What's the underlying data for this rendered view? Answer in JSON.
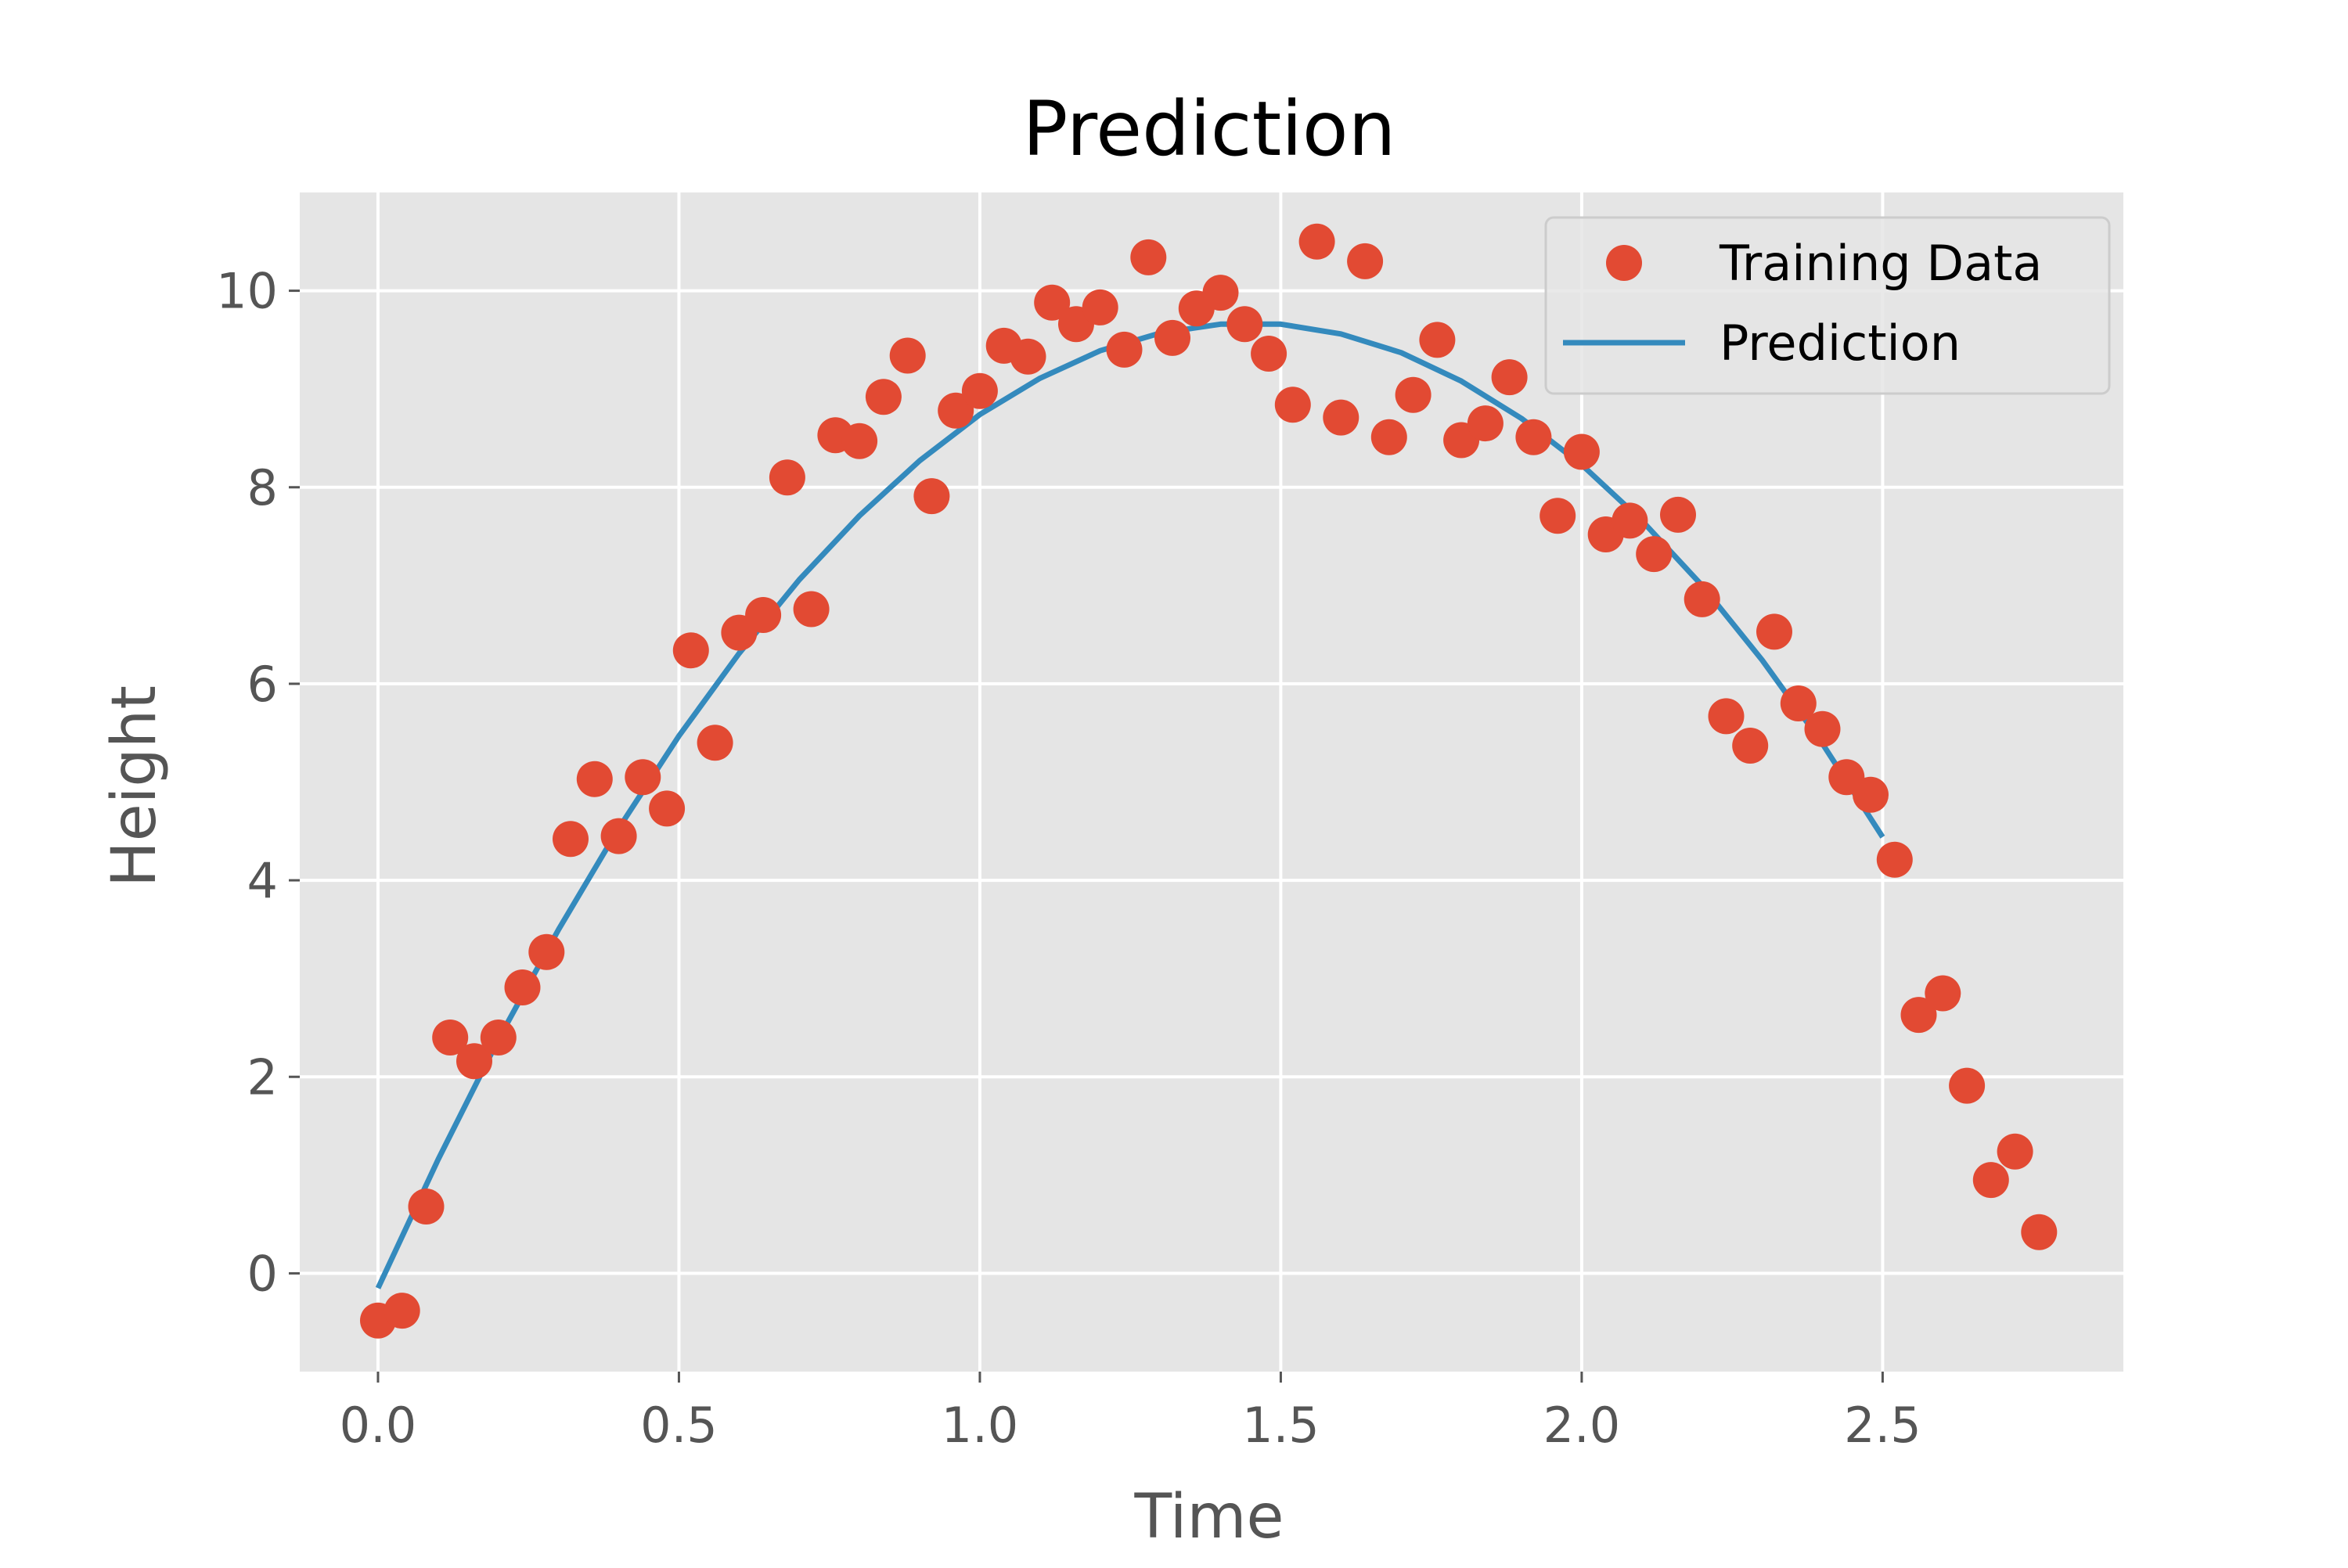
{
  "chart_data": {
    "type": "scatter",
    "title": "Prediction",
    "xlabel": "Time",
    "ylabel": "Height",
    "xlim": [
      -0.13,
      2.9
    ],
    "ylim": [
      -1.0,
      11.0
    ],
    "xticks": [
      0.0,
      0.5,
      1.0,
      1.5,
      2.0,
      2.5
    ],
    "xtick_labels": [
      "0.0",
      "0.5",
      "1.0",
      "1.5",
      "2.0",
      "2.5"
    ],
    "yticks": [
      0,
      2,
      4,
      6,
      8,
      10
    ],
    "ytick_labels": [
      "0",
      "2",
      "4",
      "6",
      "8",
      "10"
    ],
    "grid": true,
    "legend_position": "top-right",
    "background_color": "#e5e5e5",
    "series": [
      {
        "name": "Training Data",
        "kind": "scatter",
        "color": "#e24a33",
        "points": [
          [
            0.0,
            -0.48
          ],
          [
            0.04,
            -0.38
          ],
          [
            0.08,
            0.68
          ],
          [
            0.12,
            2.4
          ],
          [
            0.16,
            2.16
          ],
          [
            0.2,
            2.4
          ],
          [
            0.24,
            2.91
          ],
          [
            0.28,
            3.27
          ],
          [
            0.32,
            4.42
          ],
          [
            0.36,
            5.03
          ],
          [
            0.4,
            4.45
          ],
          [
            0.44,
            5.05
          ],
          [
            0.48,
            4.73
          ],
          [
            0.52,
            6.34
          ],
          [
            0.56,
            5.4
          ],
          [
            0.6,
            6.52
          ],
          [
            0.64,
            6.7
          ],
          [
            0.68,
            8.1
          ],
          [
            0.72,
            6.76
          ],
          [
            0.76,
            8.53
          ],
          [
            0.8,
            8.47
          ],
          [
            0.84,
            8.92
          ],
          [
            0.88,
            9.34
          ],
          [
            0.92,
            7.91
          ],
          [
            0.96,
            8.78
          ],
          [
            1.0,
            8.98
          ],
          [
            1.04,
            9.44
          ],
          [
            1.08,
            9.33
          ],
          [
            1.12,
            9.88
          ],
          [
            1.16,
            9.66
          ],
          [
            1.2,
            9.83
          ],
          [
            1.24,
            9.4
          ],
          [
            1.28,
            10.34
          ],
          [
            1.32,
            9.52
          ],
          [
            1.36,
            9.82
          ],
          [
            1.4,
            9.98
          ],
          [
            1.44,
            9.66
          ],
          [
            1.48,
            9.36
          ],
          [
            1.52,
            8.84
          ],
          [
            1.56,
            10.5
          ],
          [
            1.6,
            8.71
          ],
          [
            1.64,
            10.3
          ],
          [
            1.68,
            8.51
          ],
          [
            1.72,
            8.94
          ],
          [
            1.76,
            9.5
          ],
          [
            1.8,
            8.48
          ],
          [
            1.84,
            8.65
          ],
          [
            1.88,
            9.12
          ],
          [
            1.92,
            8.51
          ],
          [
            1.96,
            7.71
          ],
          [
            2.0,
            8.36
          ],
          [
            2.04,
            7.52
          ],
          [
            2.08,
            7.66
          ],
          [
            2.12,
            7.32
          ],
          [
            2.16,
            7.72
          ],
          [
            2.2,
            6.86
          ],
          [
            2.24,
            5.67
          ],
          [
            2.28,
            5.37
          ],
          [
            2.32,
            6.53
          ],
          [
            2.36,
            5.8
          ],
          [
            2.4,
            5.54
          ],
          [
            2.44,
            5.05
          ],
          [
            2.48,
            4.87
          ],
          [
            2.52,
            4.21
          ],
          [
            2.56,
            2.63
          ],
          [
            2.6,
            2.85
          ],
          [
            2.64,
            1.91
          ],
          [
            2.68,
            0.95
          ],
          [
            2.72,
            1.24
          ],
          [
            2.76,
            0.42
          ]
        ]
      },
      {
        "name": "Prediction",
        "kind": "line",
        "color": "#348abd",
        "points": [
          [
            0.0,
            -0.15
          ],
          [
            0.1,
            1.16
          ],
          [
            0.2,
            2.38
          ],
          [
            0.3,
            3.5
          ],
          [
            0.4,
            4.53
          ],
          [
            0.5,
            5.47
          ],
          [
            0.6,
            6.31
          ],
          [
            0.7,
            7.06
          ],
          [
            0.8,
            7.71
          ],
          [
            0.9,
            8.27
          ],
          [
            1.0,
            8.74
          ],
          [
            1.1,
            9.11
          ],
          [
            1.2,
            9.39
          ],
          [
            1.3,
            9.57
          ],
          [
            1.4,
            9.66
          ],
          [
            1.5,
            9.66
          ],
          [
            1.6,
            9.56
          ],
          [
            1.7,
            9.37
          ],
          [
            1.8,
            9.08
          ],
          [
            1.9,
            8.7
          ],
          [
            2.0,
            8.23
          ],
          [
            2.1,
            7.66
          ],
          [
            2.2,
            7.0
          ],
          [
            2.3,
            6.24
          ],
          [
            2.4,
            5.39
          ],
          [
            2.5,
            4.44
          ]
        ]
      }
    ]
  }
}
